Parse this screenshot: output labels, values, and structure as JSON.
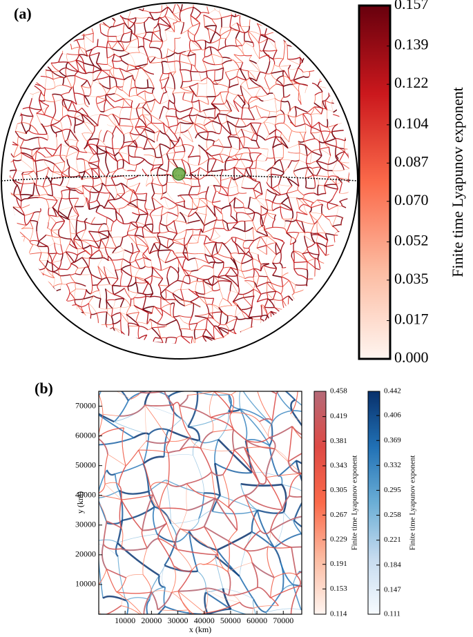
{
  "chart_data": [
    {
      "type": "field",
      "panel": "(a)",
      "colorbars": [
        {
          "label": "Finite time Lyapunov exponent",
          "lim": [
            0,
            0.157
          ],
          "ticks": [
            {
              "value": 0,
              "label": "0.000"
            },
            0.017,
            0.035,
            0.052,
            {
              "value": 0.07,
              "label": "0.070"
            },
            0.087,
            0.104,
            0.122,
            0.139,
            0.157
          ],
          "colors": [
            "#fff5f0",
            "#fcbba1",
            "#fb6a4a",
            "#cb181d",
            "#67000d"
          ]
        }
      ]
    },
    {
      "type": "field",
      "panel": "(b)",
      "xlabel": "x (km)",
      "ylabel": "y (km)",
      "xlim": [
        0,
        77000
      ],
      "ylim": [
        0,
        75000
      ],
      "xticks": [
        10000,
        20000,
        30000,
        40000,
        50000,
        60000,
        70000
      ],
      "yticks": [
        10000,
        20000,
        30000,
        40000,
        50000,
        60000,
        70000
      ],
      "colorbars": [
        {
          "label": "Finite time Lyapunov exponent",
          "lim": [
            0.114,
            0.458
          ],
          "ticks": [
            0.114,
            0.153,
            0.191,
            0.229,
            0.267,
            0.305,
            0.343,
            0.381,
            0.419,
            0.458
          ],
          "colors": [
            "#fff5f0",
            "#fcbba1",
            "#fb6a4a",
            "#de4a45",
            "#b56a78"
          ]
        },
        {
          "label": "Finite time Lyapunov exponent",
          "lim": [
            0.111,
            0.442
          ],
          "ticks": [
            0.111,
            0.147,
            0.184,
            0.221,
            0.258,
            0.295,
            0.332,
            0.369,
            0.406,
            0.442
          ],
          "colors": [
            "#f7fbff",
            "#c6dbef",
            "#6baed6",
            "#2171b5",
            "#08306b"
          ]
        }
      ]
    }
  ]
}
